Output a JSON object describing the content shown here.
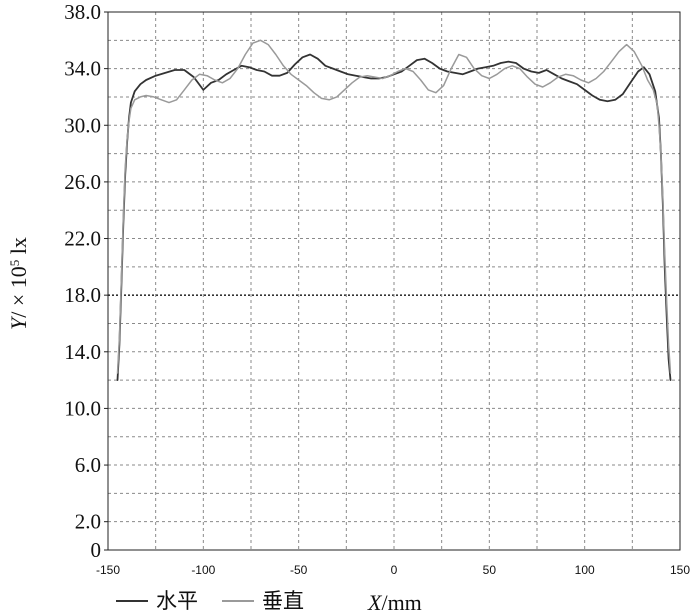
{
  "chart_data": {
    "type": "line",
    "xlabel_var": "X",
    "xlabel_unit": "/mm",
    "ylabel_var": "Y",
    "ylabel_unit": "/ × 10",
    "ylabel_exp": "5",
    "ylabel_unit2": " lx",
    "xlim": [
      -150,
      150
    ],
    "ylim": [
      0,
      38
    ],
    "x_ticks": [
      "-150",
      "-100",
      "-50",
      "0",
      "50",
      "100",
      "150"
    ],
    "y_ticks": [
      "0",
      "2.0",
      "6.0",
      "10.0",
      "14.0",
      "18.0",
      "22.0",
      "26.0",
      "30.0",
      "34.0",
      "38.0"
    ],
    "grid": true,
    "legend_position": "bottom-left",
    "series": [
      {
        "name": "水平",
        "color": "#333333",
        "x": [
          -145,
          -144,
          -143,
          -142,
          -141,
          -140,
          -139,
          -138,
          -136,
          -133,
          -130,
          -125,
          -120,
          -115,
          -110,
          -105,
          -100,
          -96,
          -92,
          -88,
          -84,
          -80,
          -76,
          -72,
          -68,
          -64,
          -60,
          -56,
          -52,
          -48,
          -44,
          -40,
          -36,
          -32,
          -28,
          -24,
          -20,
          -16,
          -12,
          -8,
          -4,
          0,
          4,
          8,
          12,
          16,
          20,
          24,
          28,
          32,
          36,
          40,
          44,
          48,
          52,
          56,
          60,
          64,
          68,
          72,
          76,
          80,
          84,
          88,
          92,
          96,
          100,
          104,
          108,
          112,
          116,
          120,
          124,
          128,
          131,
          134,
          137,
          139,
          140,
          141,
          142,
          143,
          144,
          145
        ],
        "y": [
          12.0,
          14.5,
          18.5,
          23.0,
          26.5,
          28.8,
          30.5,
          31.6,
          32.4,
          32.9,
          33.2,
          33.5,
          33.7,
          33.9,
          33.9,
          33.4,
          32.5,
          33.0,
          33.2,
          33.6,
          33.9,
          34.2,
          34.1,
          33.9,
          33.8,
          33.5,
          33.5,
          33.7,
          34.3,
          34.8,
          35.0,
          34.7,
          34.2,
          34.0,
          33.8,
          33.6,
          33.5,
          33.4,
          33.3,
          33.3,
          33.4,
          33.6,
          33.8,
          34.2,
          34.6,
          34.7,
          34.4,
          34.0,
          33.8,
          33.7,
          33.6,
          33.8,
          34.0,
          34.1,
          34.2,
          34.4,
          34.5,
          34.4,
          34.0,
          33.8,
          33.7,
          33.9,
          33.6,
          33.3,
          33.1,
          32.9,
          32.5,
          32.1,
          31.8,
          31.7,
          31.8,
          32.2,
          33.0,
          33.8,
          34.1,
          33.6,
          32.4,
          30.5,
          28.0,
          24.5,
          20.0,
          16.5,
          13.5,
          12.0
        ]
      },
      {
        "name": "垂直",
        "color": "#9a9a9a",
        "x": [
          -145,
          -144,
          -143,
          -142,
          -141,
          -140,
          -139,
          -138,
          -136,
          -133,
          -130,
          -126,
          -122,
          -118,
          -114,
          -110,
          -106,
          -102,
          -98,
          -94,
          -90,
          -86,
          -82,
          -78,
          -74,
          -70,
          -66,
          -62,
          -58,
          -54,
          -50,
          -46,
          -42,
          -38,
          -34,
          -30,
          -26,
          -22,
          -18,
          -14,
          -10,
          -6,
          -2,
          2,
          6,
          10,
          14,
          18,
          22,
          26,
          30,
          34,
          38,
          42,
          46,
          50,
          54,
          58,
          62,
          66,
          70,
          74,
          78,
          82,
          86,
          90,
          94,
          98,
          102,
          106,
          110,
          114,
          118,
          122,
          126,
          130,
          133,
          136,
          138,
          139,
          140,
          141,
          142,
          143,
          144,
          145
        ],
        "y": [
          12.5,
          15.0,
          19.0,
          23.5,
          27.0,
          29.0,
          30.3,
          31.2,
          31.8,
          32.0,
          32.1,
          32.0,
          31.8,
          31.6,
          31.8,
          32.5,
          33.2,
          33.6,
          33.5,
          33.2,
          33.0,
          33.3,
          34.0,
          35.0,
          35.8,
          36.0,
          35.7,
          35.0,
          34.2,
          33.6,
          33.2,
          32.8,
          32.3,
          31.9,
          31.8,
          32.0,
          32.5,
          33.0,
          33.4,
          33.5,
          33.4,
          33.3,
          33.5,
          33.8,
          34.0,
          33.8,
          33.2,
          32.5,
          32.3,
          32.8,
          34.0,
          35.0,
          34.8,
          34.0,
          33.5,
          33.3,
          33.6,
          34.0,
          34.2,
          34.0,
          33.4,
          32.9,
          32.7,
          33.0,
          33.4,
          33.6,
          33.5,
          33.2,
          33.0,
          33.3,
          33.8,
          34.5,
          35.2,
          35.7,
          35.2,
          34.2,
          33.2,
          32.5,
          31.5,
          30.0,
          28.0,
          25.0,
          21.0,
          17.5,
          14.5,
          12.5
        ]
      }
    ]
  }
}
